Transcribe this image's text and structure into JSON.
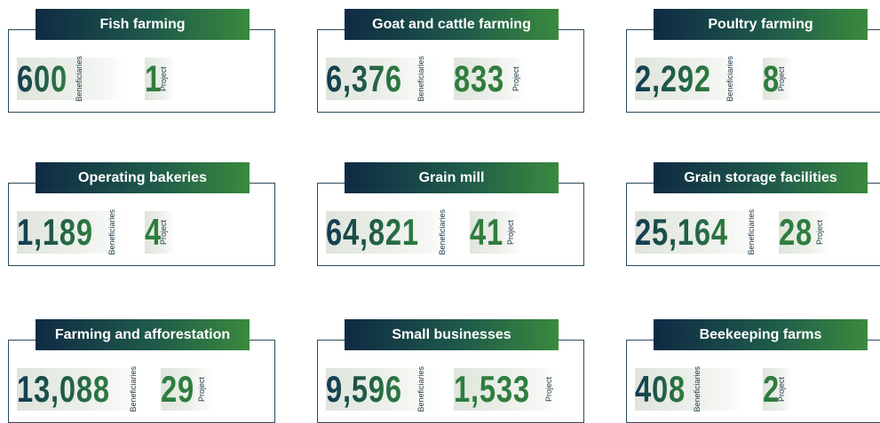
{
  "cards": [
    {
      "title": "Fish farming",
      "beneficiaries": "600",
      "beneficiaries_label": "Beneficiaries",
      "projects": "1",
      "projects_label": "Project"
    },
    {
      "title": "Goat and cattle farming",
      "beneficiaries": "6,376",
      "beneficiaries_label": "Beneficiaries",
      "projects": "833",
      "projects_label": "Project"
    },
    {
      "title": "Poultry farming",
      "beneficiaries": "2,292",
      "beneficiaries_label": "Beneficiaries",
      "projects": "8",
      "projects_label": "Project"
    },
    {
      "title": "Operating bakeries",
      "beneficiaries": "1,189",
      "beneficiaries_label": "Beneficiaries",
      "projects": "4",
      "projects_label": "Project"
    },
    {
      "title": "Grain mill",
      "beneficiaries": "64,821",
      "beneficiaries_label": "Beneficiaries",
      "projects": "41",
      "projects_label": "Project"
    },
    {
      "title": "Grain storage facilities",
      "beneficiaries": "25,164",
      "beneficiaries_label": "Beneficiaries",
      "projects": "28",
      "projects_label": "Project"
    },
    {
      "title": "Farming and afforestation",
      "beneficiaries": "13,088",
      "beneficiaries_label": "Beneficiaries",
      "projects": "29",
      "projects_label": "Project"
    },
    {
      "title": "Small businesses",
      "beneficiaries": "9,596",
      "beneficiaries_label": "Beneficiaries",
      "projects": "1,533",
      "projects_label": "Project"
    },
    {
      "title": "Beekeeping farms",
      "beneficiaries": "408",
      "beneficiaries_label": "Beneficiaries",
      "projects": "2",
      "projects_label": "Project"
    }
  ]
}
